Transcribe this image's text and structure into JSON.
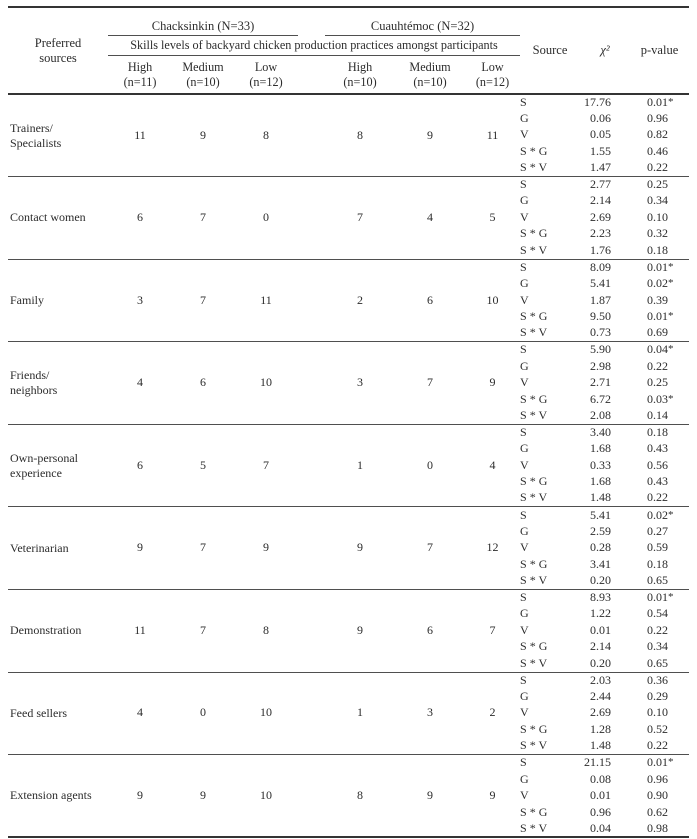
{
  "table": {
    "header": {
      "preferred_sources": "Preferred\nsources",
      "group1_title": "Chacksinkin (N=33)",
      "group2_title": "Cuauhtémoc (N=32)",
      "skills_title": "Skills levels of backyard chicken production practices amongst participants",
      "group1_levels": [
        {
          "label": "High",
          "n": "(n=11)"
        },
        {
          "label": "Medium",
          "n": "(n=10)"
        },
        {
          "label": "Low",
          "n": "(n=12)"
        }
      ],
      "group2_levels": [
        {
          "label": "High",
          "n": "(n=10)"
        },
        {
          "label": "Medium",
          "n": "(n=10)"
        },
        {
          "label": "Low",
          "n": "(n=12)"
        }
      ],
      "source": "Source",
      "chi_square": "χ²",
      "p_value": "p-value"
    },
    "rows": [
      {
        "label": "Trainers/\nSpecialists",
        "counts": [
          11,
          9,
          8,
          8,
          9,
          11
        ],
        "stats": [
          {
            "source": "S",
            "chi": "17.76",
            "p": "0.01",
            "sig": true
          },
          {
            "source": "G",
            "chi": "0.06",
            "p": "0.96",
            "sig": false
          },
          {
            "source": "V",
            "chi": "0.05",
            "p": "0.82",
            "sig": false
          },
          {
            "source": "S * G",
            "chi": "1.55",
            "p": "0.46",
            "sig": false
          },
          {
            "source": "S * V",
            "chi": "1.47",
            "p": "0.22",
            "sig": false
          }
        ]
      },
      {
        "label": "Contact women",
        "counts": [
          6,
          7,
          0,
          7,
          4,
          5
        ],
        "stats": [
          {
            "source": "S",
            "chi": "2.77",
            "p": "0.25",
            "sig": false
          },
          {
            "source": "G",
            "chi": "2.14",
            "p": "0.34",
            "sig": false
          },
          {
            "source": "V",
            "chi": "2.69",
            "p": "0.10",
            "sig": false
          },
          {
            "source": "S * G",
            "chi": "2.23",
            "p": "0.32",
            "sig": false
          },
          {
            "source": "S * V",
            "chi": "1.76",
            "p": "0.18",
            "sig": false
          }
        ]
      },
      {
        "label": "Family",
        "counts": [
          3,
          7,
          11,
          2,
          6,
          10
        ],
        "stats": [
          {
            "source": "S",
            "chi": "8.09",
            "p": "0.01",
            "sig": true
          },
          {
            "source": "G",
            "chi": "5.41",
            "p": "0.02",
            "sig": true
          },
          {
            "source": "V",
            "chi": "1.87",
            "p": "0.39",
            "sig": false
          },
          {
            "source": "S * G",
            "chi": "9.50",
            "p": "0.01",
            "sig": true
          },
          {
            "source": "S * V",
            "chi": "0.73",
            "p": "0.69",
            "sig": false
          }
        ]
      },
      {
        "label": "Friends/\nneighbors",
        "counts": [
          4,
          6,
          10,
          3,
          7,
          9
        ],
        "stats": [
          {
            "source": "S",
            "chi": "5.90",
            "p": "0.04",
            "sig": true
          },
          {
            "source": "G",
            "chi": "2.98",
            "p": "0.22",
            "sig": false
          },
          {
            "source": "V",
            "chi": "2.71",
            "p": "0.25",
            "sig": false
          },
          {
            "source": "S * G",
            "chi": "6.72",
            "p": "0.03",
            "sig": true
          },
          {
            "source": "S * V",
            "chi": "2.08",
            "p": "0.14",
            "sig": false
          }
        ]
      },
      {
        "label": "Own-personal\nexperience",
        "counts": [
          6,
          5,
          7,
          1,
          0,
          4
        ],
        "stats": [
          {
            "source": "S",
            "chi": "3.40",
            "p": "0.18",
            "sig": false
          },
          {
            "source": "G",
            "chi": "1.68",
            "p": "0.43",
            "sig": false
          },
          {
            "source": "V",
            "chi": "0.33",
            "p": "0.56",
            "sig": false
          },
          {
            "source": "S * G",
            "chi": "1.68",
            "p": "0.43",
            "sig": false
          },
          {
            "source": "S * V",
            "chi": "1.48",
            "p": "0.22",
            "sig": false
          }
        ]
      },
      {
        "label": "Veterinarian",
        "counts": [
          9,
          7,
          9,
          9,
          7,
          12
        ],
        "stats": [
          {
            "source": "S",
            "chi": "5.41",
            "p": "0.02",
            "sig": true
          },
          {
            "source": "G",
            "chi": "2.59",
            "p": "0.27",
            "sig": false
          },
          {
            "source": "V",
            "chi": "0.28",
            "p": "0.59",
            "sig": false
          },
          {
            "source": "S * G",
            "chi": "3.41",
            "p": "0.18",
            "sig": false
          },
          {
            "source": "S * V",
            "chi": "0.20",
            "p": "0.65",
            "sig": false
          }
        ]
      },
      {
        "label": "Demonstration",
        "counts": [
          11,
          7,
          8,
          9,
          6,
          7
        ],
        "stats": [
          {
            "source": "S",
            "chi": "8.93",
            "p": "0.01",
            "sig": true
          },
          {
            "source": "G",
            "chi": "1.22",
            "p": "0.54",
            "sig": false
          },
          {
            "source": "V",
            "chi": "0.01",
            "p": "0.22",
            "sig": false
          },
          {
            "source": "S * G",
            "chi": "2.14",
            "p": "0.34",
            "sig": false
          },
          {
            "source": "S * V",
            "chi": "0.20",
            "p": "0.65",
            "sig": false
          }
        ]
      },
      {
        "label": "Feed sellers",
        "counts": [
          4,
          0,
          10,
          1,
          3,
          2
        ],
        "stats": [
          {
            "source": "S",
            "chi": "2.03",
            "p": "0.36",
            "sig": false
          },
          {
            "source": "G",
            "chi": "2.44",
            "p": "0.29",
            "sig": false
          },
          {
            "source": "V",
            "chi": "2.69",
            "p": "0.10",
            "sig": false
          },
          {
            "source": "S * G",
            "chi": "1.28",
            "p": "0.52",
            "sig": false
          },
          {
            "source": "S * V",
            "chi": "1.48",
            "p": "0.22",
            "sig": false
          }
        ]
      },
      {
        "label": "Extension agents",
        "counts": [
          9,
          9,
          10,
          8,
          9,
          9
        ],
        "stats": [
          {
            "source": "S",
            "chi": "21.15",
            "p": "0.01",
            "sig": true
          },
          {
            "source": "G",
            "chi": "0.08",
            "p": "0.96",
            "sig": false
          },
          {
            "source": "V",
            "chi": "0.01",
            "p": "0.90",
            "sig": false
          },
          {
            "source": "S * G",
            "chi": "0.96",
            "p": "0.62",
            "sig": false
          },
          {
            "source": "S * V",
            "chi": "0.04",
            "p": "0.98",
            "sig": false
          }
        ]
      }
    ],
    "colors": {
      "text": "#2c2c2c",
      "rule_thin": "#4f4f4f",
      "rule_thick": "#343434",
      "background": "#ffffff"
    }
  }
}
